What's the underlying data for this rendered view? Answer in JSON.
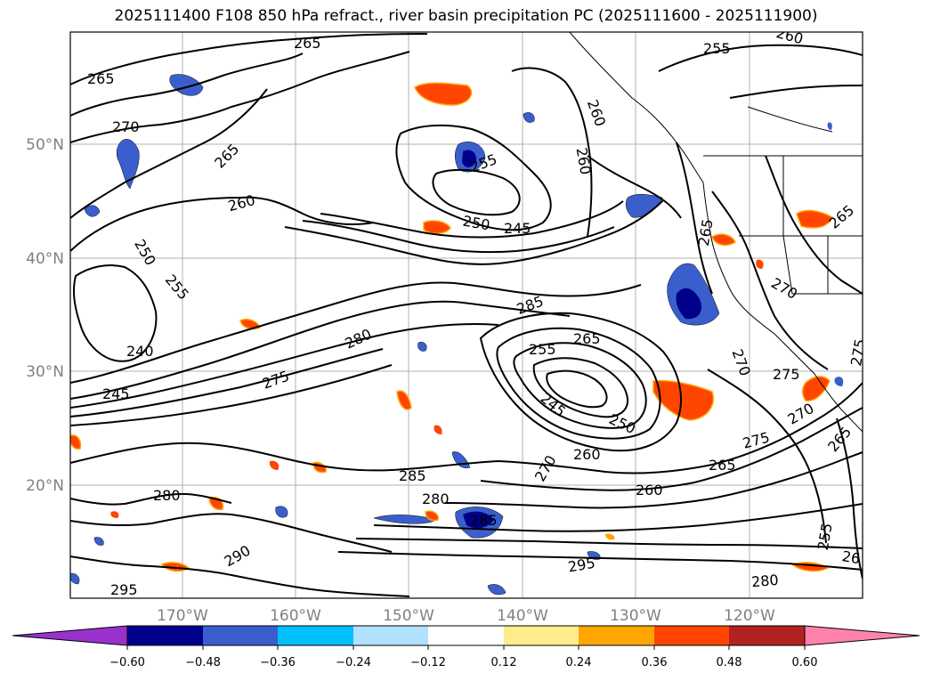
{
  "title": "2025111400 F108 850 hPa refract., river basin precipitation PC (2025111600 - 2025111900)",
  "map": {
    "lon_labels": [
      "170°W",
      "160°W",
      "150°W",
      "140°W",
      "130°W",
      "120°W"
    ],
    "lat_labels": [
      "50°N",
      "40°N",
      "30°N",
      "20°N"
    ],
    "contour_labels": [
      {
        "text": "265"
      },
      {
        "text": "265"
      },
      {
        "text": "270"
      },
      {
        "text": "265"
      },
      {
        "text": "260"
      },
      {
        "text": "250"
      },
      {
        "text": "255"
      },
      {
        "text": "240"
      },
      {
        "text": "245"
      },
      {
        "text": "275"
      },
      {
        "text": "280"
      },
      {
        "text": "255"
      },
      {
        "text": "260"
      },
      {
        "text": "250"
      },
      {
        "text": "245"
      },
      {
        "text": "285"
      },
      {
        "text": "255"
      },
      {
        "text": "265"
      },
      {
        "text": "245"
      },
      {
        "text": "250"
      },
      {
        "text": "260"
      },
      {
        "text": "270"
      },
      {
        "text": "285"
      },
      {
        "text": "280"
      },
      {
        "text": "280"
      },
      {
        "text": "290"
      },
      {
        "text": "295"
      },
      {
        "text": "295"
      },
      {
        "text": "260"
      },
      {
        "text": "265"
      },
      {
        "text": "275"
      },
      {
        "text": "270"
      },
      {
        "text": "270"
      },
      {
        "text": "265"
      },
      {
        "text": "255"
      },
      {
        "text": "260"
      },
      {
        "text": "280"
      },
      {
        "text": "270"
      },
      {
        "text": "275"
      },
      {
        "text": "265"
      },
      {
        "text": "255"
      },
      {
        "text": "260"
      },
      {
        "text": "265"
      },
      {
        "text": "26"
      },
      {
        "text": "285"
      },
      {
        "text": "275"
      }
    ]
  },
  "colorbar": {
    "ticks": [
      "−0.60",
      "−0.48",
      "−0.36",
      "−0.24",
      "−0.12",
      "0.12",
      "0.24",
      "0.36",
      "0.48",
      "0.60"
    ],
    "colors": [
      "#9932cc",
      "#00008b",
      "#3a5fcd",
      "#00bfff",
      "#b0e2ff",
      "#ffffff",
      "#ffec8b",
      "#ffa500",
      "#ff4500",
      "#b22222",
      "#ff82ab"
    ]
  }
}
